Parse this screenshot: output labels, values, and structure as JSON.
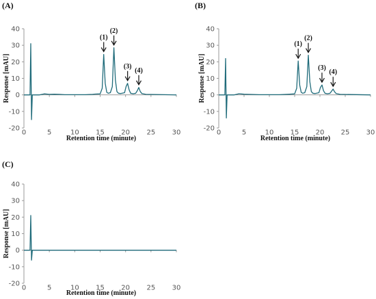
{
  "chart_data": [
    {
      "type": "line",
      "panel": "(A)",
      "xlabel": "Retention time (minute)",
      "ylabel": "Response [mAU]",
      "xlim": [
        0,
        30
      ],
      "ylim": [
        -20,
        40
      ],
      "xticks": [
        0,
        5,
        10,
        15,
        20,
        25,
        30
      ],
      "yticks": [
        -20,
        -10,
        0,
        10,
        20,
        30,
        40
      ],
      "color": "#1f6b7a",
      "series": [
        {
          "x": [
            0,
            1.2,
            1.35,
            1.5,
            1.65,
            3,
            4,
            5,
            6,
            7,
            8,
            10,
            12,
            13.5,
            14,
            15,
            15.4,
            15.7,
            16,
            16.3,
            16.6,
            17,
            17.4,
            17.7,
            18,
            18.3,
            18.6,
            19,
            19.8,
            20.1,
            20.4,
            20.7,
            21,
            21.5,
            22,
            22.3,
            22.6,
            22.9,
            23.2,
            24,
            30
          ],
          "y": [
            0,
            0,
            31,
            -15,
            0,
            0,
            0.6,
            0.3,
            0.4,
            0.3,
            0.1,
            0.1,
            0.1,
            0.3,
            0.5,
            0.6,
            4,
            24.5,
            7,
            1.5,
            1,
            1.3,
            5,
            28.5,
            9,
            2,
            1,
            0.8,
            1.3,
            5,
            7,
            3,
            1,
            0.7,
            1,
            2.5,
            4.5,
            2,
            0.8,
            0.3,
            0
          ]
        }
      ],
      "annotations": [
        {
          "text": "(1)",
          "x": 15.7,
          "y": 24.5
        },
        {
          "text": "(2)",
          "x": 17.7,
          "y": 28.5
        },
        {
          "text": "(3)",
          "x": 20.4,
          "y": 7
        },
        {
          "text": "(4)",
          "x": 22.6,
          "y": 4.5
        }
      ]
    },
    {
      "type": "line",
      "panel": "(B)",
      "xlabel": "Retention time (minute)",
      "ylabel": "Response [mAU]",
      "xlim": [
        0,
        30
      ],
      "ylim": [
        -20,
        40
      ],
      "xticks": [
        0,
        5,
        10,
        15,
        20,
        25,
        30
      ],
      "yticks": [
        -20,
        -10,
        0,
        10,
        20,
        30,
        40
      ],
      "color": "#1f6b7a",
      "series": [
        {
          "x": [
            0,
            1.2,
            1.35,
            1.5,
            1.65,
            3,
            4,
            5,
            6,
            8,
            10,
            12,
            14,
            15,
            15.4,
            15.7,
            16,
            16.3,
            16.6,
            17,
            17.4,
            17.7,
            18,
            18.3,
            18.6,
            19,
            19.8,
            20.1,
            20.4,
            20.7,
            21,
            21.5,
            22,
            22.3,
            22.6,
            22.9,
            23.2,
            24,
            30
          ],
          "y": [
            0,
            0,
            22,
            -14,
            0,
            0,
            0.7,
            0.4,
            0.3,
            0.1,
            0.1,
            0.1,
            0.4,
            0.6,
            4,
            20.5,
            6,
            1.5,
            1,
            1.3,
            5,
            24,
            8,
            2,
            1,
            0.8,
            1.3,
            4.5,
            6,
            2.5,
            1,
            0.7,
            1,
            2.2,
            3.5,
            1.8,
            0.8,
            0.3,
            0
          ]
        }
      ],
      "annotations": [
        {
          "text": "(1)",
          "x": 15.7,
          "y": 20.5
        },
        {
          "text": "(2)",
          "x": 17.7,
          "y": 24
        },
        {
          "text": "(3)",
          "x": 20.4,
          "y": 6
        },
        {
          "text": "(4)",
          "x": 22.6,
          "y": 3.5
        }
      ]
    },
    {
      "type": "line",
      "panel": "(C)",
      "xlabel": "Retention time (minute)",
      "ylabel": "Response [mAU]",
      "xlim": [
        0,
        30
      ],
      "ylim": [
        -20,
        40
      ],
      "xticks": [
        0,
        5,
        10,
        15,
        20,
        25,
        30
      ],
      "yticks": [
        -20,
        -10,
        0,
        10,
        20,
        30,
        40
      ],
      "color": "#1f6b7a",
      "series": [
        {
          "x": [
            0,
            1.2,
            1.35,
            1.5,
            1.65,
            2.5,
            30
          ],
          "y": [
            0,
            0,
            21,
            -6,
            0,
            0,
            0
          ]
        }
      ],
      "annotations": []
    }
  ]
}
